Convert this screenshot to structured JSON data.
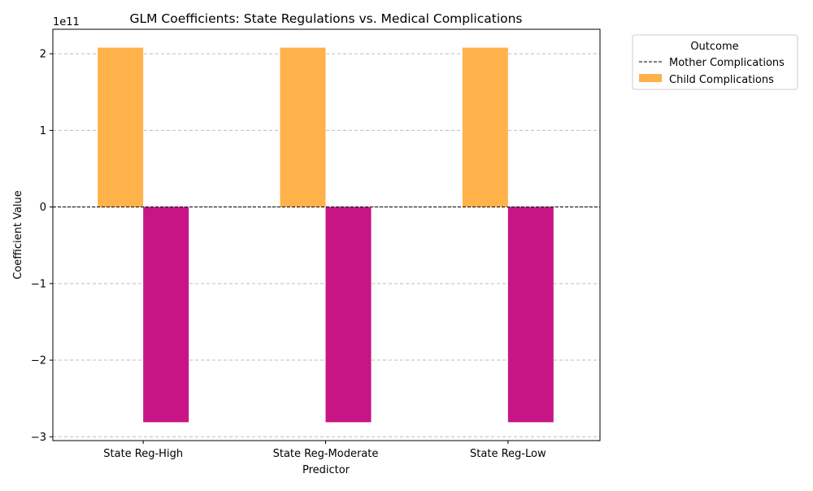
{
  "chart_data": {
    "type": "bar",
    "title": "GLM Coefficients: State Regulations vs. Medical Complications",
    "xlabel": "Predictor",
    "ylabel": "Coefficient Value",
    "scale_label": "1e11",
    "scale_factor": 100000000000,
    "categories": [
      "State Reg-High",
      "State Reg-Moderate",
      "State Reg-Low"
    ],
    "ylim": [
      -305000000000,
      232000000000
    ],
    "yticks": [
      -300000000000,
      -200000000000,
      -100000000000,
      0,
      100000000000,
      200000000000
    ],
    "ytick_labels": [
      "−3",
      "−2",
      "−1",
      "0",
      "1",
      "2"
    ],
    "grid": true,
    "series": [
      {
        "name": "Child Complications",
        "values": [
          208000000000,
          208000000000,
          208000000000
        ],
        "color": "#FFB14A"
      },
      {
        "name": "",
        "values": [
          -281000000000,
          -281000000000,
          -281000000000
        ],
        "color": "#C71585"
      }
    ],
    "legend": {
      "title": "Outcome",
      "placement": "outside-top-right",
      "entries": [
        {
          "label": "Mother Complications",
          "kind": "dashed-line",
          "color": "#000000"
        },
        {
          "label": "Child Complications",
          "kind": "patch",
          "color": "#FFB14A"
        }
      ]
    },
    "zero_line": true
  }
}
